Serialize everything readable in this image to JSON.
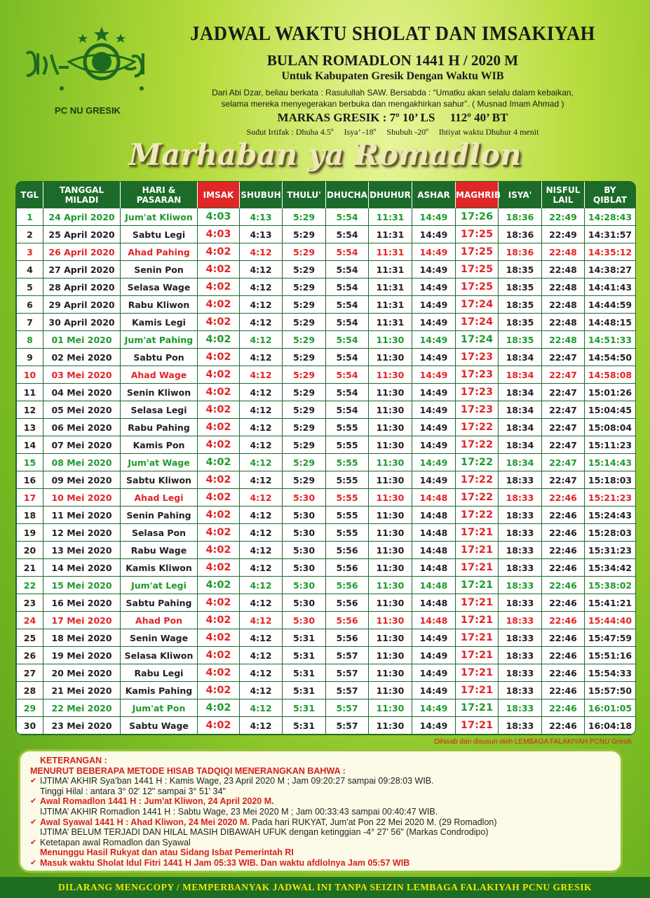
{
  "header": {
    "org": "PC NU GRESIK",
    "title": "JADWAL WAKTU SHOLAT DAN IMSAKIYAH",
    "subtitle": "BULAN ROMADLON 1441 H / 2020 M",
    "district": "Untuk Kabupaten Gresik Dengan Waktu WIB",
    "hadith": [
      "Dari Abi Dzar, beliau berkata : Rasulullah SAW. Bersabda : “Umatku akan selalu dalam kebaikan,",
      "selama mereka menyegerakan berbuka dan mengakhirkan sahur”. ( Musnad Imam Ahmad )"
    ],
    "markas": "MARKAS GRESIK : 7º 10’ LS     112º 40’ BT",
    "sudut": "Sudut Irtifak : Dhuha 4.5º     Isya’ -18º     Shubuh -20º     Ihtiyat waktu Dhuhur 4 menit",
    "banner": "Marhaban ya Romadlon"
  },
  "table": {
    "columns": [
      "TGL",
      "TANGGAL\nMILADI",
      "HARI &\nPASARAN",
      "IMSAK",
      "SHUBUH",
      "THULU'",
      "DHUCHA",
      "DHUHUR",
      "ASHAR",
      "MAGHRIB",
      "ISYA'",
      "NISFUL\nLAIL",
      "BY\nQIBLAT"
    ],
    "column_colors": [
      "#1d6b2a",
      "#1d6b2a",
      "#1d6b2a",
      "#e02626",
      "#1d6b2a",
      "#1d6b2a",
      "#1d6b2a",
      "#1d6b2a",
      "#1d6b2a",
      "#e02626",
      "#1d6b2a",
      "#1d6b2a",
      "#1d6b2a"
    ],
    "rows": [
      [
        "1",
        "24 April 2020",
        "Jum'at Kliwon",
        "4:03",
        "4:13",
        "5:29",
        "5:54",
        "11:31",
        "14:49",
        "17:26",
        "18:36",
        "22:49",
        "14:28:43"
      ],
      [
        "2",
        "25 April 2020",
        "Sabtu Legi",
        "4:03",
        "4:13",
        "5:29",
        "5:54",
        "11:31",
        "14:49",
        "17:25",
        "18:36",
        "22:49",
        "14:31:57"
      ],
      [
        "3",
        "26 April 2020",
        "Ahad Pahing",
        "4:02",
        "4:12",
        "5:29",
        "5:54",
        "11:31",
        "14:49",
        "17:25",
        "18:36",
        "22:48",
        "14:35:12"
      ],
      [
        "4",
        "27 April 2020",
        "Senin Pon",
        "4:02",
        "4:12",
        "5:29",
        "5:54",
        "11:31",
        "14:49",
        "17:25",
        "18:35",
        "22:48",
        "14:38:27"
      ],
      [
        "5",
        "28 April 2020",
        "Selasa Wage",
        "4:02",
        "4:12",
        "5:29",
        "5:54",
        "11:31",
        "14:49",
        "17:25",
        "18:35",
        "22:48",
        "14:41:43"
      ],
      [
        "6",
        "29 April 2020",
        "Rabu Kliwon",
        "4:02",
        "4:12",
        "5:29",
        "5:54",
        "11:31",
        "14:49",
        "17:24",
        "18:35",
        "22:48",
        "14:44:59"
      ],
      [
        "7",
        "30 April 2020",
        "Kamis Legi",
        "4:02",
        "4:12",
        "5:29",
        "5:54",
        "11:31",
        "14:49",
        "17:24",
        "18:35",
        "22:48",
        "14:48:15"
      ],
      [
        "8",
        "01 Mei 2020",
        "Jum'at Pahing",
        "4:02",
        "4:12",
        "5:29",
        "5:54",
        "11:30",
        "14:49",
        "17:24",
        "18:35",
        "22:48",
        "14:51:33"
      ],
      [
        "9",
        "02 Mei 2020",
        "Sabtu Pon",
        "4:02",
        "4:12",
        "5:29",
        "5:54",
        "11:30",
        "14:49",
        "17:23",
        "18:34",
        "22:47",
        "14:54:50"
      ],
      [
        "10",
        "03 Mei 2020",
        "Ahad Wage",
        "4:02",
        "4:12",
        "5:29",
        "5:54",
        "11:30",
        "14:49",
        "17:23",
        "18:34",
        "22:47",
        "14:58:08"
      ],
      [
        "11",
        "04 Mei 2020",
        "Senin Kliwon",
        "4:02",
        "4:12",
        "5:29",
        "5:54",
        "11:30",
        "14:49",
        "17:23",
        "18:34",
        "22:47",
        "15:01:26"
      ],
      [
        "12",
        "05 Mei 2020",
        "Selasa Legi",
        "4:02",
        "4:12",
        "5:29",
        "5:54",
        "11:30",
        "14:49",
        "17:23",
        "18:34",
        "22:47",
        "15:04:45"
      ],
      [
        "13",
        "06 Mei 2020",
        "Rabu Pahing",
        "4:02",
        "4:12",
        "5:29",
        "5:55",
        "11:30",
        "14:49",
        "17:22",
        "18:34",
        "22:47",
        "15:08:04"
      ],
      [
        "14",
        "07 Mei 2020",
        "Kamis Pon",
        "4:02",
        "4:12",
        "5:29",
        "5:55",
        "11:30",
        "14:49",
        "17:22",
        "18:34",
        "22:47",
        "15:11:23"
      ],
      [
        "15",
        "08 Mei 2020",
        "Jum'at Wage",
        "4:02",
        "4:12",
        "5:29",
        "5:55",
        "11:30",
        "14:49",
        "17:22",
        "18:34",
        "22:47",
        "15:14:43"
      ],
      [
        "16",
        "09 Mei 2020",
        "Sabtu Kliwon",
        "4:02",
        "4:12",
        "5:29",
        "5:55",
        "11:30",
        "14:49",
        "17:22",
        "18:33",
        "22:47",
        "15:18:03"
      ],
      [
        "17",
        "10 Mei 2020",
        "Ahad Legi",
        "4:02",
        "4:12",
        "5:30",
        "5:55",
        "11:30",
        "14:48",
        "17:22",
        "18:33",
        "22:46",
        "15:21:23"
      ],
      [
        "18",
        "11 Mei 2020",
        "Senin Pahing",
        "4:02",
        "4:12",
        "5:30",
        "5:55",
        "11:30",
        "14:48",
        "17:22",
        "18:33",
        "22:46",
        "15:24:43"
      ],
      [
        "19",
        "12 Mei 2020",
        "Selasa Pon",
        "4:02",
        "4:12",
        "5:30",
        "5:55",
        "11:30",
        "14:48",
        "17:21",
        "18:33",
        "22:46",
        "15:28:03"
      ],
      [
        "20",
        "13 Mei 2020",
        "Rabu Wage",
        "4:02",
        "4:12",
        "5:30",
        "5:56",
        "11:30",
        "14:48",
        "17:21",
        "18:33",
        "22:46",
        "15:31:23"
      ],
      [
        "21",
        "14 Mei 2020",
        "Kamis Kliwon",
        "4:02",
        "4:12",
        "5:30",
        "5:56",
        "11:30",
        "14:48",
        "17:21",
        "18:33",
        "22:46",
        "15:34:42"
      ],
      [
        "22",
        "15 Mei 2020",
        "Jum'at Legi",
        "4:02",
        "4:12",
        "5:30",
        "5:56",
        "11:30",
        "14:48",
        "17:21",
        "18:33",
        "22:46",
        "15:38:02"
      ],
      [
        "23",
        "16 Mei 2020",
        "Sabtu Pahing",
        "4:02",
        "4:12",
        "5:30",
        "5:56",
        "11:30",
        "14:48",
        "17:21",
        "18:33",
        "22:46",
        "15:41:21"
      ],
      [
        "24",
        "17 Mei 2020",
        "Ahad Pon",
        "4:02",
        "4:12",
        "5:30",
        "5:56",
        "11:30",
        "14:48",
        "17:21",
        "18:33",
        "22:46",
        "15:44:40"
      ],
      [
        "25",
        "18 Mei 2020",
        "Senin Wage",
        "4:02",
        "4:12",
        "5:31",
        "5:56",
        "11:30",
        "14:49",
        "17:21",
        "18:33",
        "22:46",
        "15:47:59"
      ],
      [
        "26",
        "19 Mei 2020",
        "Selasa Kliwon",
        "4:02",
        "4:12",
        "5:31",
        "5:57",
        "11:30",
        "14:49",
        "17:21",
        "18:33",
        "22:46",
        "15:51:16"
      ],
      [
        "27",
        "20 Mei 2020",
        "Rabu Legi",
        "4:02",
        "4:12",
        "5:31",
        "5:57",
        "11:30",
        "14:49",
        "17:21",
        "18:33",
        "22:46",
        "15:54:33"
      ],
      [
        "28",
        "21 Mei 2020",
        "Kamis Pahing",
        "4:02",
        "4:12",
        "5:31",
        "5:57",
        "11:30",
        "14:49",
        "17:21",
        "18:33",
        "22:46",
        "15:57:50"
      ],
      [
        "29",
        "22 Mei 2020",
        "Jum'at Pon",
        "4:02",
        "4:12",
        "5:31",
        "5:57",
        "11:30",
        "14:49",
        "17:21",
        "18:33",
        "22:46",
        "16:01:05"
      ],
      [
        "30",
        "23 Mei 2020",
        "Sabtu Wage",
        "4:02",
        "4:12",
        "5:31",
        "5:57",
        "11:30",
        "14:49",
        "17:21",
        "18:33",
        "22:46",
        "16:04:18"
      ]
    ],
    "row_colors": [
      "#1e9a2c",
      null,
      "#e02626",
      null,
      null,
      null,
      null,
      "#1e9a2c",
      null,
      "#e02626",
      null,
      null,
      null,
      null,
      "#1e9a2c",
      null,
      "#e02626",
      null,
      null,
      null,
      null,
      "#1e9a2c",
      null,
      "#e02626",
      null,
      null,
      null,
      null,
      "#1e9a2c",
      null
    ],
    "credit": "Dihisab dan disusun oleh LEMBAGA FALAKIYAH PCNU Gresik"
  },
  "notes": {
    "title": "KETERANGAN :",
    "intro": "MENURUT BEBERAPA METODE HISAB TADQIQI MENERANGKAN BAHWA :",
    "items": [
      {
        "lines": [
          [
            {
              "text": "IJTIMA’ AKHIR Sya’ban 1441 H : Kamis Wage, 23 April 2020 M ; Jam 09:20:27 sampai 09:28:03 WIB.",
              "color": "#222"
            }
          ],
          [
            {
              "text": "Tinggi Hilal : antara 3° 02' 12\" sampai 3° 51' 34\"",
              "color": "#222"
            }
          ]
        ]
      },
      {
        "lines": [
          [
            {
              "text": "Awal Romadlon 1441 H : Jum'at Kliwon, 24 April 2020 M.",
              "color": "#d81f1f"
            }
          ],
          [
            {
              "text": "IJTIMA’ AKHIR Romadlon 1441 H : Sabtu Wage, 23 Mei 2020 M ; Jam 00:33:43 sampai 00:40:47 WIB.",
              "color": "#222"
            }
          ]
        ]
      },
      {
        "lines": [
          [
            {
              "text": "Awal Syawal 1441 H : Ahad Kliwon, 24 Mei 2020 M.",
              "color": "#d81f1f"
            },
            {
              "text": " Pada hari RUKYAT, Jum'at Pon 22 Mei 2020 M. (29 Romadlon)",
              "color": "#222"
            }
          ],
          [
            {
              "text": "IJTIMA’ BELUM TERJADI DAN HILAL MASIH DIBAWAH UFUK dengan ketinggian -4° 27' 56\" (Markas Condrodipo)",
              "color": "#222"
            }
          ]
        ]
      },
      {
        "lines": [
          [
            {
              "text": "Ketetapan awal Romadlon dan Syawal",
              "color": "#222"
            }
          ],
          [
            {
              "text": "Menunggu Hasil Rukyat dan atau Sidang Isbat Pemerintah RI",
              "color": "#d81f1f"
            }
          ]
        ]
      },
      {
        "lines": [
          [
            {
              "text": "Masuk waktu Sholat Idul Fitri 1441 H Jam 05:33 WIB. Dan waktu afdlolnya Jam 05:57 WIB",
              "color": "#d81f1f"
            }
          ]
        ]
      }
    ]
  },
  "footer": "DILARANG MENGCOPY / MEMPERBANYAK JADWAL INI TANPA SEIZIN LEMBAGA FALAKIYAH PCNU GRESIK"
}
